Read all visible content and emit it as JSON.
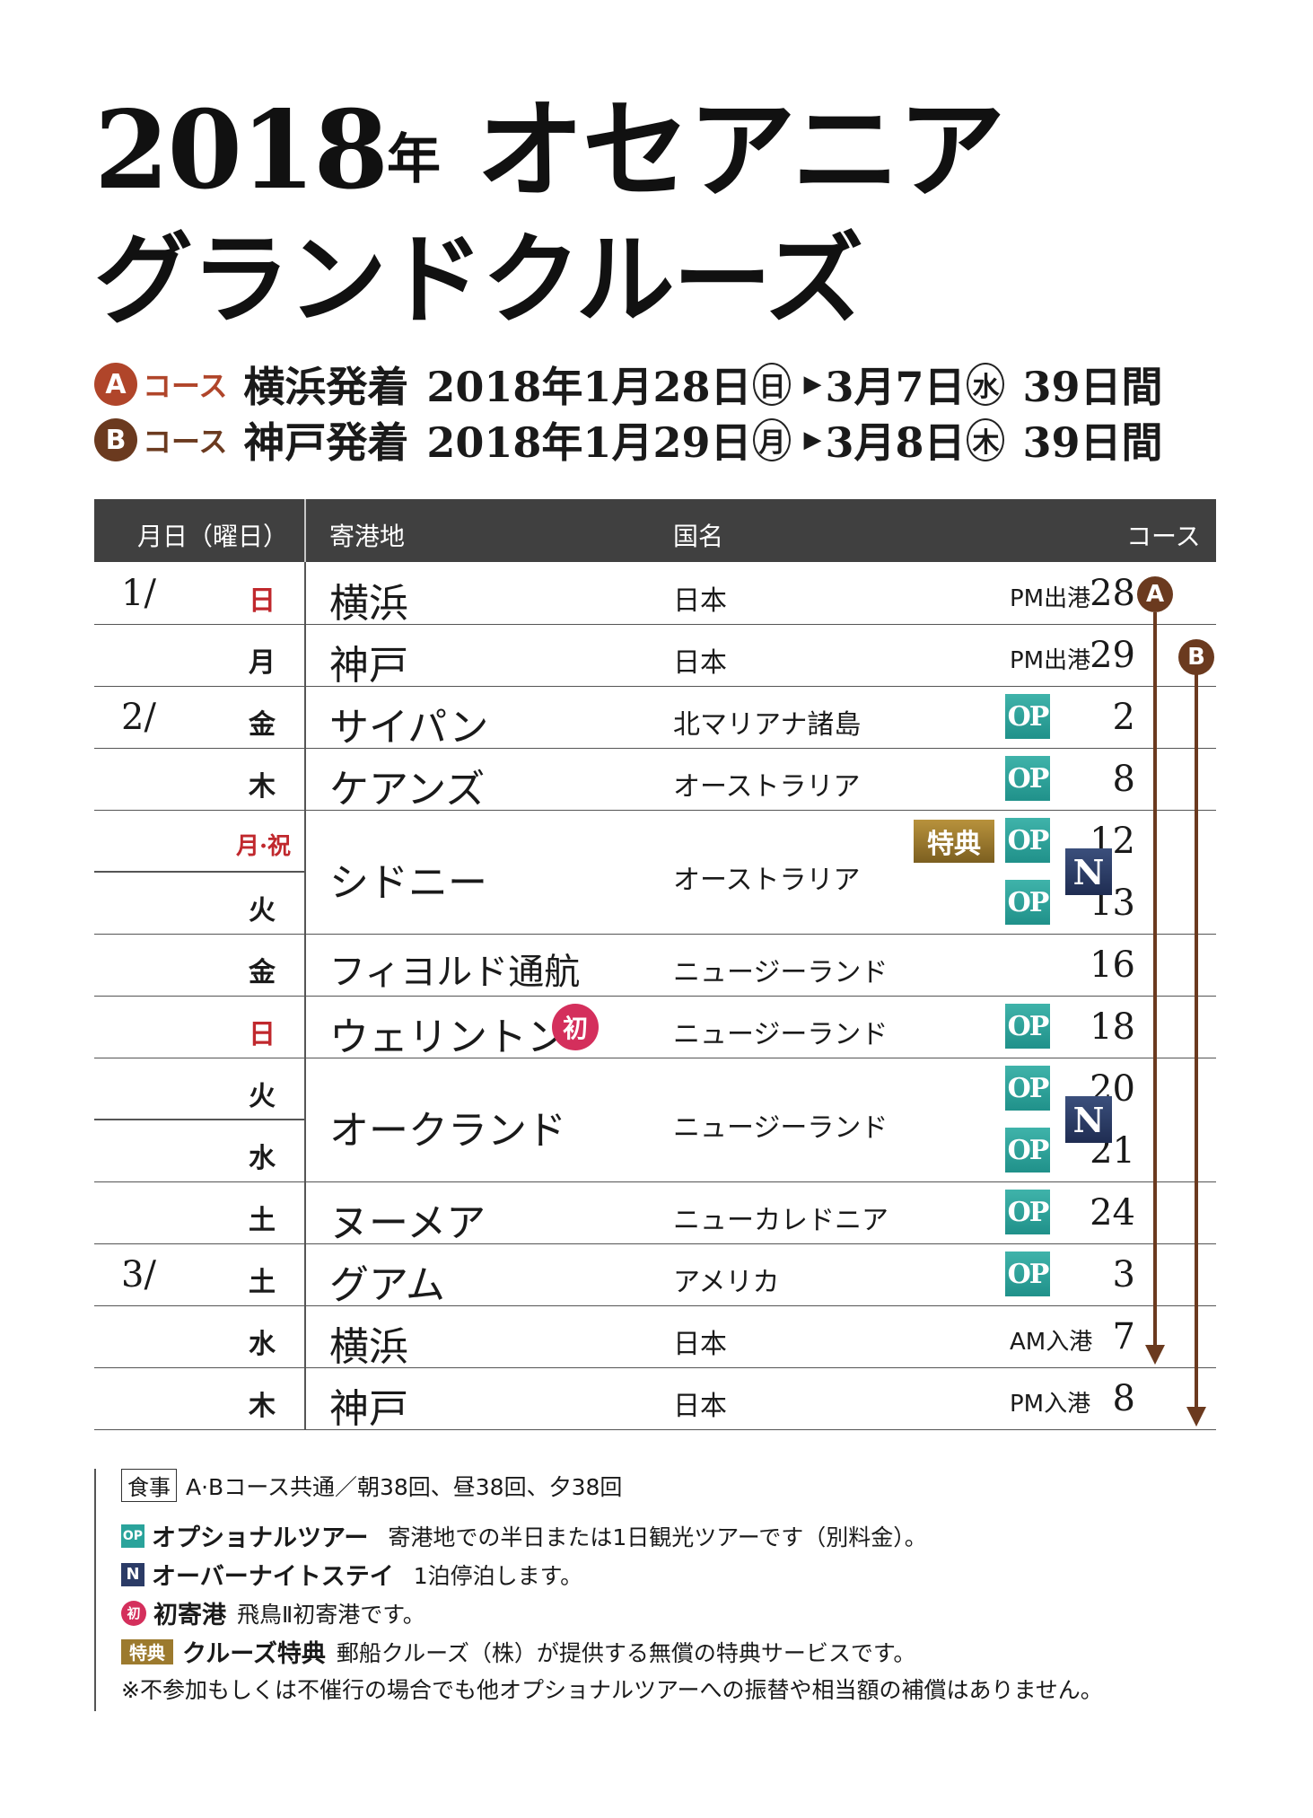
{
  "title": {
    "line1_year": "2018",
    "line1_nen": "年",
    "line1_rest": "オセアニア",
    "line2": "グランドクルーズ"
  },
  "courses": [
    {
      "badge": "A",
      "label": "コース",
      "route": "横浜発着",
      "start": "2018年1月28日",
      "start_dow": "日",
      "end": "3月7日",
      "end_dow": "水",
      "days": "39日間",
      "color": "#b0452a"
    },
    {
      "badge": "B",
      "label": "コース",
      "route": "神戸発着",
      "start": "2018年1月29日",
      "start_dow": "月",
      "end": "3月8日",
      "end_dow": "木",
      "days": "39日間",
      "color": "#6b3a1f"
    }
  ],
  "table": {
    "headers": {
      "date": "月日（曜日）",
      "port": "寄港地",
      "country": "国名",
      "course": "コース"
    },
    "rows": [
      {
        "month": "1/",
        "day": "28",
        "dow": "日",
        "dow_red": true,
        "port": "横浜",
        "country": "日本",
        "note": "PM出港"
      },
      {
        "month": "",
        "day": "29",
        "dow": "月",
        "port": "神戸",
        "country": "日本",
        "note": "PM出港"
      },
      {
        "month": "2/",
        "day": "2",
        "dow": "金",
        "port": "サイパン",
        "country": "北マリアナ諸島",
        "op": "OP"
      },
      {
        "month": "",
        "day": "8",
        "dow": "木",
        "port": "ケアンズ",
        "country": "オーストラリア",
        "op": "OP"
      },
      {
        "month": "",
        "day": "12",
        "dow": "月·祝",
        "dow_red": true,
        "port": "シドニー",
        "country": "オーストラリア",
        "op": "OP",
        "tokuten": "特典",
        "n": "N"
      },
      {
        "month": "",
        "day": "13",
        "dow": "火",
        "op": "OP"
      },
      {
        "month": "",
        "day": "16",
        "dow": "金",
        "port": "フィヨルド通航",
        "country": "ニュージーランド"
      },
      {
        "month": "",
        "day": "18",
        "dow": "日",
        "dow_red": true,
        "port": "ウェリントン",
        "hatsu": "初",
        "country": "ニュージーランド",
        "op": "OP"
      },
      {
        "month": "",
        "day": "20",
        "dow": "火",
        "port": "オークランド",
        "country": "ニュージーランド",
        "op": "OP",
        "n": "N"
      },
      {
        "month": "",
        "day": "21",
        "dow": "水",
        "op": "OP"
      },
      {
        "month": "",
        "day": "24",
        "dow": "土",
        "port": "ヌーメア",
        "country": "ニューカレドニア",
        "op": "OP"
      },
      {
        "month": "3/",
        "day": "3",
        "dow": "土",
        "port": "グアム",
        "country": "アメリカ",
        "op": "OP"
      },
      {
        "month": "",
        "day": "7",
        "dow": "水",
        "port": "横浜",
        "country": "日本",
        "note": "AM入港"
      },
      {
        "month": "",
        "day": "8",
        "dow": "木",
        "port": "神戸",
        "country": "日本",
        "note": "PM入港"
      }
    ]
  },
  "legend": {
    "meal_label": "食事",
    "meal_text": "A·Bコース共通／朝38回、昼38回、夕38回",
    "op_icon": "OP",
    "op_title": "オプショナルツアー",
    "op_text": "寄港地での半日または1日観光ツアーです（別料金）。",
    "n_icon": "N",
    "n_title": "オーバーナイトステイ",
    "n_text": "1泊停泊します。",
    "hatsu_icon": "初",
    "hatsu_title": "初寄港",
    "hatsu_text": "飛鳥Ⅱ初寄港です。",
    "tokuten_icon": "特典",
    "tokuten_title": "クルーズ特典",
    "tokuten_text": "郵船クルーズ（株）が提供する無償の特典サービスです。",
    "disclaimer": "※不参加もしくは不催行の場合でも他オプショナルツアーへの振替や相当額の補償はありません。"
  },
  "colors": {
    "header_bg": "#404040",
    "red": "#c0282d",
    "op": "#2aa39b",
    "n": "#2b3b66",
    "hatsu": "#d42f5c",
    "tokuten": "#9c7a2e",
    "track": "#6b3a1f"
  }
}
